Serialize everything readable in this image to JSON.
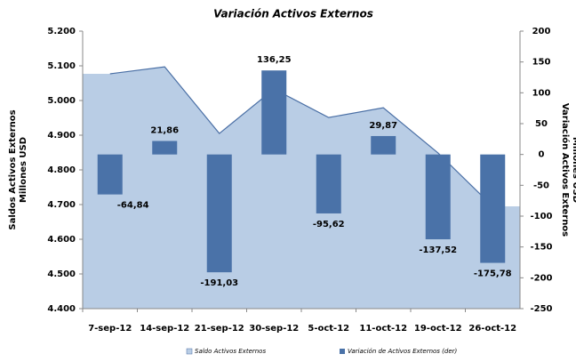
{
  "chart_data": {
    "type": "combo",
    "title": "Variación Activos Externos",
    "y_label": [
      "Saldos Activos Externos",
      "Millones USD"
    ],
    "y2_label": [
      "Variación Activos Externos",
      "Millones USD"
    ],
    "categories": [
      "7-sep-12",
      "14-sep-12",
      "21-sep-12",
      "30-sep-12",
      "5-oct-12",
      "11-oct-12",
      "19-oct-12",
      "26-oct-12"
    ],
    "series": [
      {
        "name": "Saldo Activos Externos",
        "kind": "area",
        "color": "#b9cde5",
        "line_color": "#4a6fa5",
        "values": [
          5077,
          5097,
          4905,
          5033,
          4951,
          4979,
          4849,
          4695
        ]
      },
      {
        "name": "Variación de Activos Externos (der)",
        "kind": "bar",
        "axis": "y2",
        "color": "#4a72a8",
        "values": [
          -64.84,
          21.86,
          -191.03,
          136.25,
          -95.62,
          29.87,
          -137.52,
          -175.78
        ],
        "value_labels": [
          "-64,84",
          "21,86",
          "-191,03",
          "136,25",
          "-95,62",
          "29,87",
          "-137,52",
          "-175,78"
        ]
      }
    ],
    "ylim": [
      4400,
      5200
    ],
    "yticks": [
      {
        "value": 4400,
        "label": "4.400"
      },
      {
        "value": 4500,
        "label": "4.500"
      },
      {
        "value": 4600,
        "label": "4.600"
      },
      {
        "value": 4700,
        "label": "4.700"
      },
      {
        "value": 4800,
        "label": "4.800"
      },
      {
        "value": 4900,
        "label": "4.900"
      },
      {
        "value": 5000,
        "label": "5.000"
      },
      {
        "value": 5100,
        "label": "5.100"
      },
      {
        "value": 5200,
        "label": "5.200"
      }
    ],
    "y2lim": [
      -250,
      200
    ],
    "y2ticks": [
      -250,
      -200,
      -150,
      -100,
      -50,
      0,
      50,
      100,
      150,
      200
    ],
    "legend": "bottom"
  }
}
